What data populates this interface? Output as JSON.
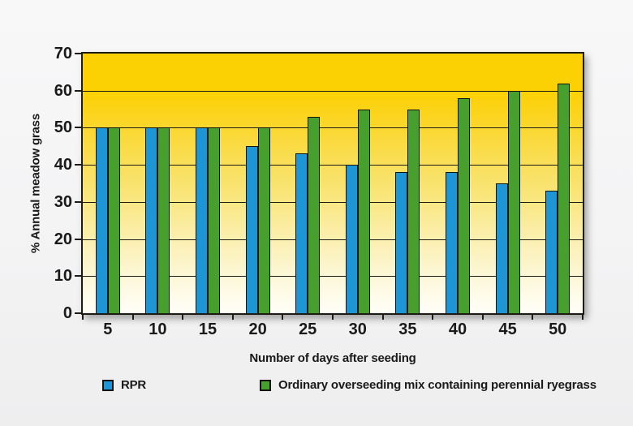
{
  "chart_data": {
    "type": "bar",
    "title": "",
    "categories": [
      "5",
      "10",
      "15",
      "20",
      "25",
      "30",
      "35",
      "40",
      "45",
      "50"
    ],
    "series": [
      {
        "name": "RPR",
        "color": "#1e95d4",
        "values": [
          50,
          50,
          50,
          45,
          43,
          40,
          38,
          38,
          35,
          33
        ]
      },
      {
        "name": "Ordinary overseeding mix containing perennial ryegrass",
        "color": "#47a02d",
        "values": [
          50,
          50,
          50,
          50,
          53,
          55,
          55,
          58,
          60,
          62
        ]
      }
    ],
    "xlabel": "Number of days after seeding",
    "ylabel": "% Annual meadow grass",
    "ylim": [
      0,
      70
    ],
    "yticks": [
      0,
      10,
      20,
      30,
      40,
      50,
      60,
      70
    ],
    "grid": true,
    "legend_position": "bottom",
    "colors": {
      "plot_background_top": "#fcd103",
      "plot_background_bottom": "#fffef6",
      "grid_line": "#1c1c14",
      "text": "#1a1a1a",
      "rpr_bar": "#1e95d4",
      "mix_bar": "#47a02d"
    }
  }
}
